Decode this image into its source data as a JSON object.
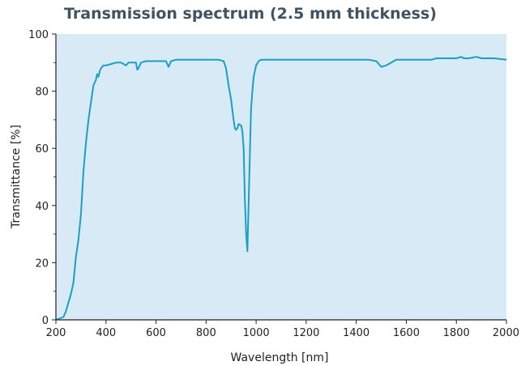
{
  "chart_data": {
    "type": "line",
    "title": "Transmission spectrum (2.5 mm thickness)",
    "xlabel": "Wavelength [nm]",
    "ylabel": "Transmittance [%]",
    "xlim": [
      200,
      2000
    ],
    "ylim": [
      0,
      100
    ],
    "x_ticks": [
      200,
      400,
      600,
      800,
      1000,
      1200,
      1400,
      1600,
      1800,
      2000
    ],
    "y_ticks": [
      0,
      20,
      40,
      60,
      80,
      100
    ],
    "grid": false,
    "legend": "none",
    "colors": {
      "line": "#1aa0c2",
      "plot_background": "#d9eaf7",
      "title": "#3f5363"
    },
    "series": [
      {
        "x": [
          200,
          230,
          240,
          250,
          260,
          270,
          280,
          290,
          300,
          310,
          320,
          330,
          340,
          350,
          360,
          365,
          370,
          375,
          380,
          390,
          400,
          420,
          440,
          460,
          480,
          490,
          500,
          520,
          525,
          530,
          540,
          560,
          600,
          640,
          650,
          655,
          660,
          680,
          700,
          750,
          800,
          850,
          870,
          880,
          890,
          900,
          910,
          915,
          920,
          925,
          930,
          940,
          945,
          950,
          955,
          960,
          965,
          970,
          975,
          978,
          980,
          985,
          990,
          1000,
          1010,
          1020,
          1040,
          1060,
          1080,
          1100,
          1200,
          1300,
          1400,
          1450,
          1480,
          1500,
          1520,
          1540,
          1560,
          1600,
          1650,
          1700,
          1720,
          1750,
          1800,
          1820,
          1830,
          1850,
          1880,
          1900,
          1950,
          2000
        ],
        "y": [
          0,
          1,
          3,
          6,
          9,
          13,
          22,
          28,
          37,
          52,
          62,
          70,
          76,
          82,
          84,
          86,
          85,
          87,
          88,
          89,
          89,
          89.5,
          90,
          90,
          89,
          90,
          90,
          90,
          87.5,
          88,
          90,
          90.5,
          90.5,
          90.5,
          88.5,
          89.5,
          90.5,
          91,
          91,
          91,
          91,
          91,
          90.5,
          88,
          82,
          77,
          70,
          67,
          66.5,
          67,
          68.5,
          68,
          66,
          60,
          42,
          30,
          24,
          40,
          58,
          68,
          74,
          80,
          85,
          89,
          90.5,
          91,
          91,
          91,
          91,
          91,
          91,
          91,
          91,
          91,
          90.5,
          88.5,
          89,
          90,
          91,
          91,
          91,
          91,
          91.5,
          91.5,
          91.5,
          92,
          91.5,
          91.5,
          92,
          91.5,
          91.5,
          91
        ]
      }
    ]
  }
}
